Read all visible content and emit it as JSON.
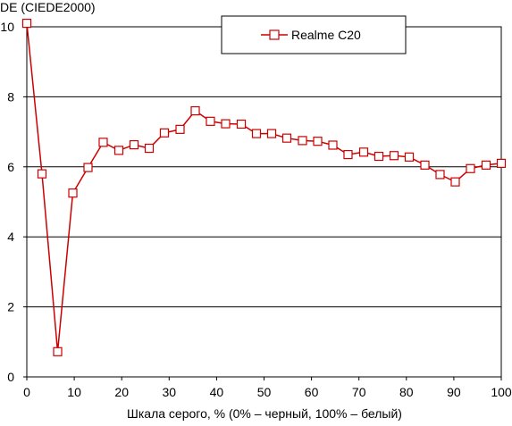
{
  "chart_data": {
    "type": "line",
    "ylabel": "DE (CIEDE2000)",
    "xlabel": "Шкала серого, % (0% – черный, 100% – белый)",
    "xlim": [
      0,
      100
    ],
    "ylim": [
      0,
      10
    ],
    "x_ticks": [
      0,
      10,
      20,
      30,
      40,
      50,
      60,
      70,
      80,
      90,
      100
    ],
    "y_ticks": [
      0,
      2,
      4,
      6,
      8,
      10
    ],
    "grid": "horizontal",
    "legend_position": "top-center",
    "series": [
      {
        "name": "Realme C20",
        "color": "#cc0000",
        "marker": "square-open",
        "x": [
          0,
          3.2,
          6.5,
          9.7,
          12.9,
          16.1,
          19.4,
          22.6,
          25.8,
          29.0,
          32.3,
          35.5,
          38.7,
          41.9,
          45.2,
          48.4,
          51.6,
          54.8,
          58.1,
          61.3,
          64.5,
          67.7,
          71.0,
          74.2,
          77.4,
          80.6,
          83.9,
          87.1,
          90.3,
          93.5,
          96.8,
          100
        ],
        "y": [
          10.1,
          5.8,
          0.72,
          5.25,
          5.98,
          6.7,
          6.47,
          6.63,
          6.53,
          6.97,
          7.07,
          7.6,
          7.3,
          7.23,
          7.22,
          6.95,
          6.95,
          6.82,
          6.75,
          6.73,
          6.62,
          6.35,
          6.42,
          6.3,
          6.32,
          6.28,
          6.05,
          5.78,
          5.57,
          5.95,
          6.05,
          6.1
        ]
      }
    ]
  }
}
